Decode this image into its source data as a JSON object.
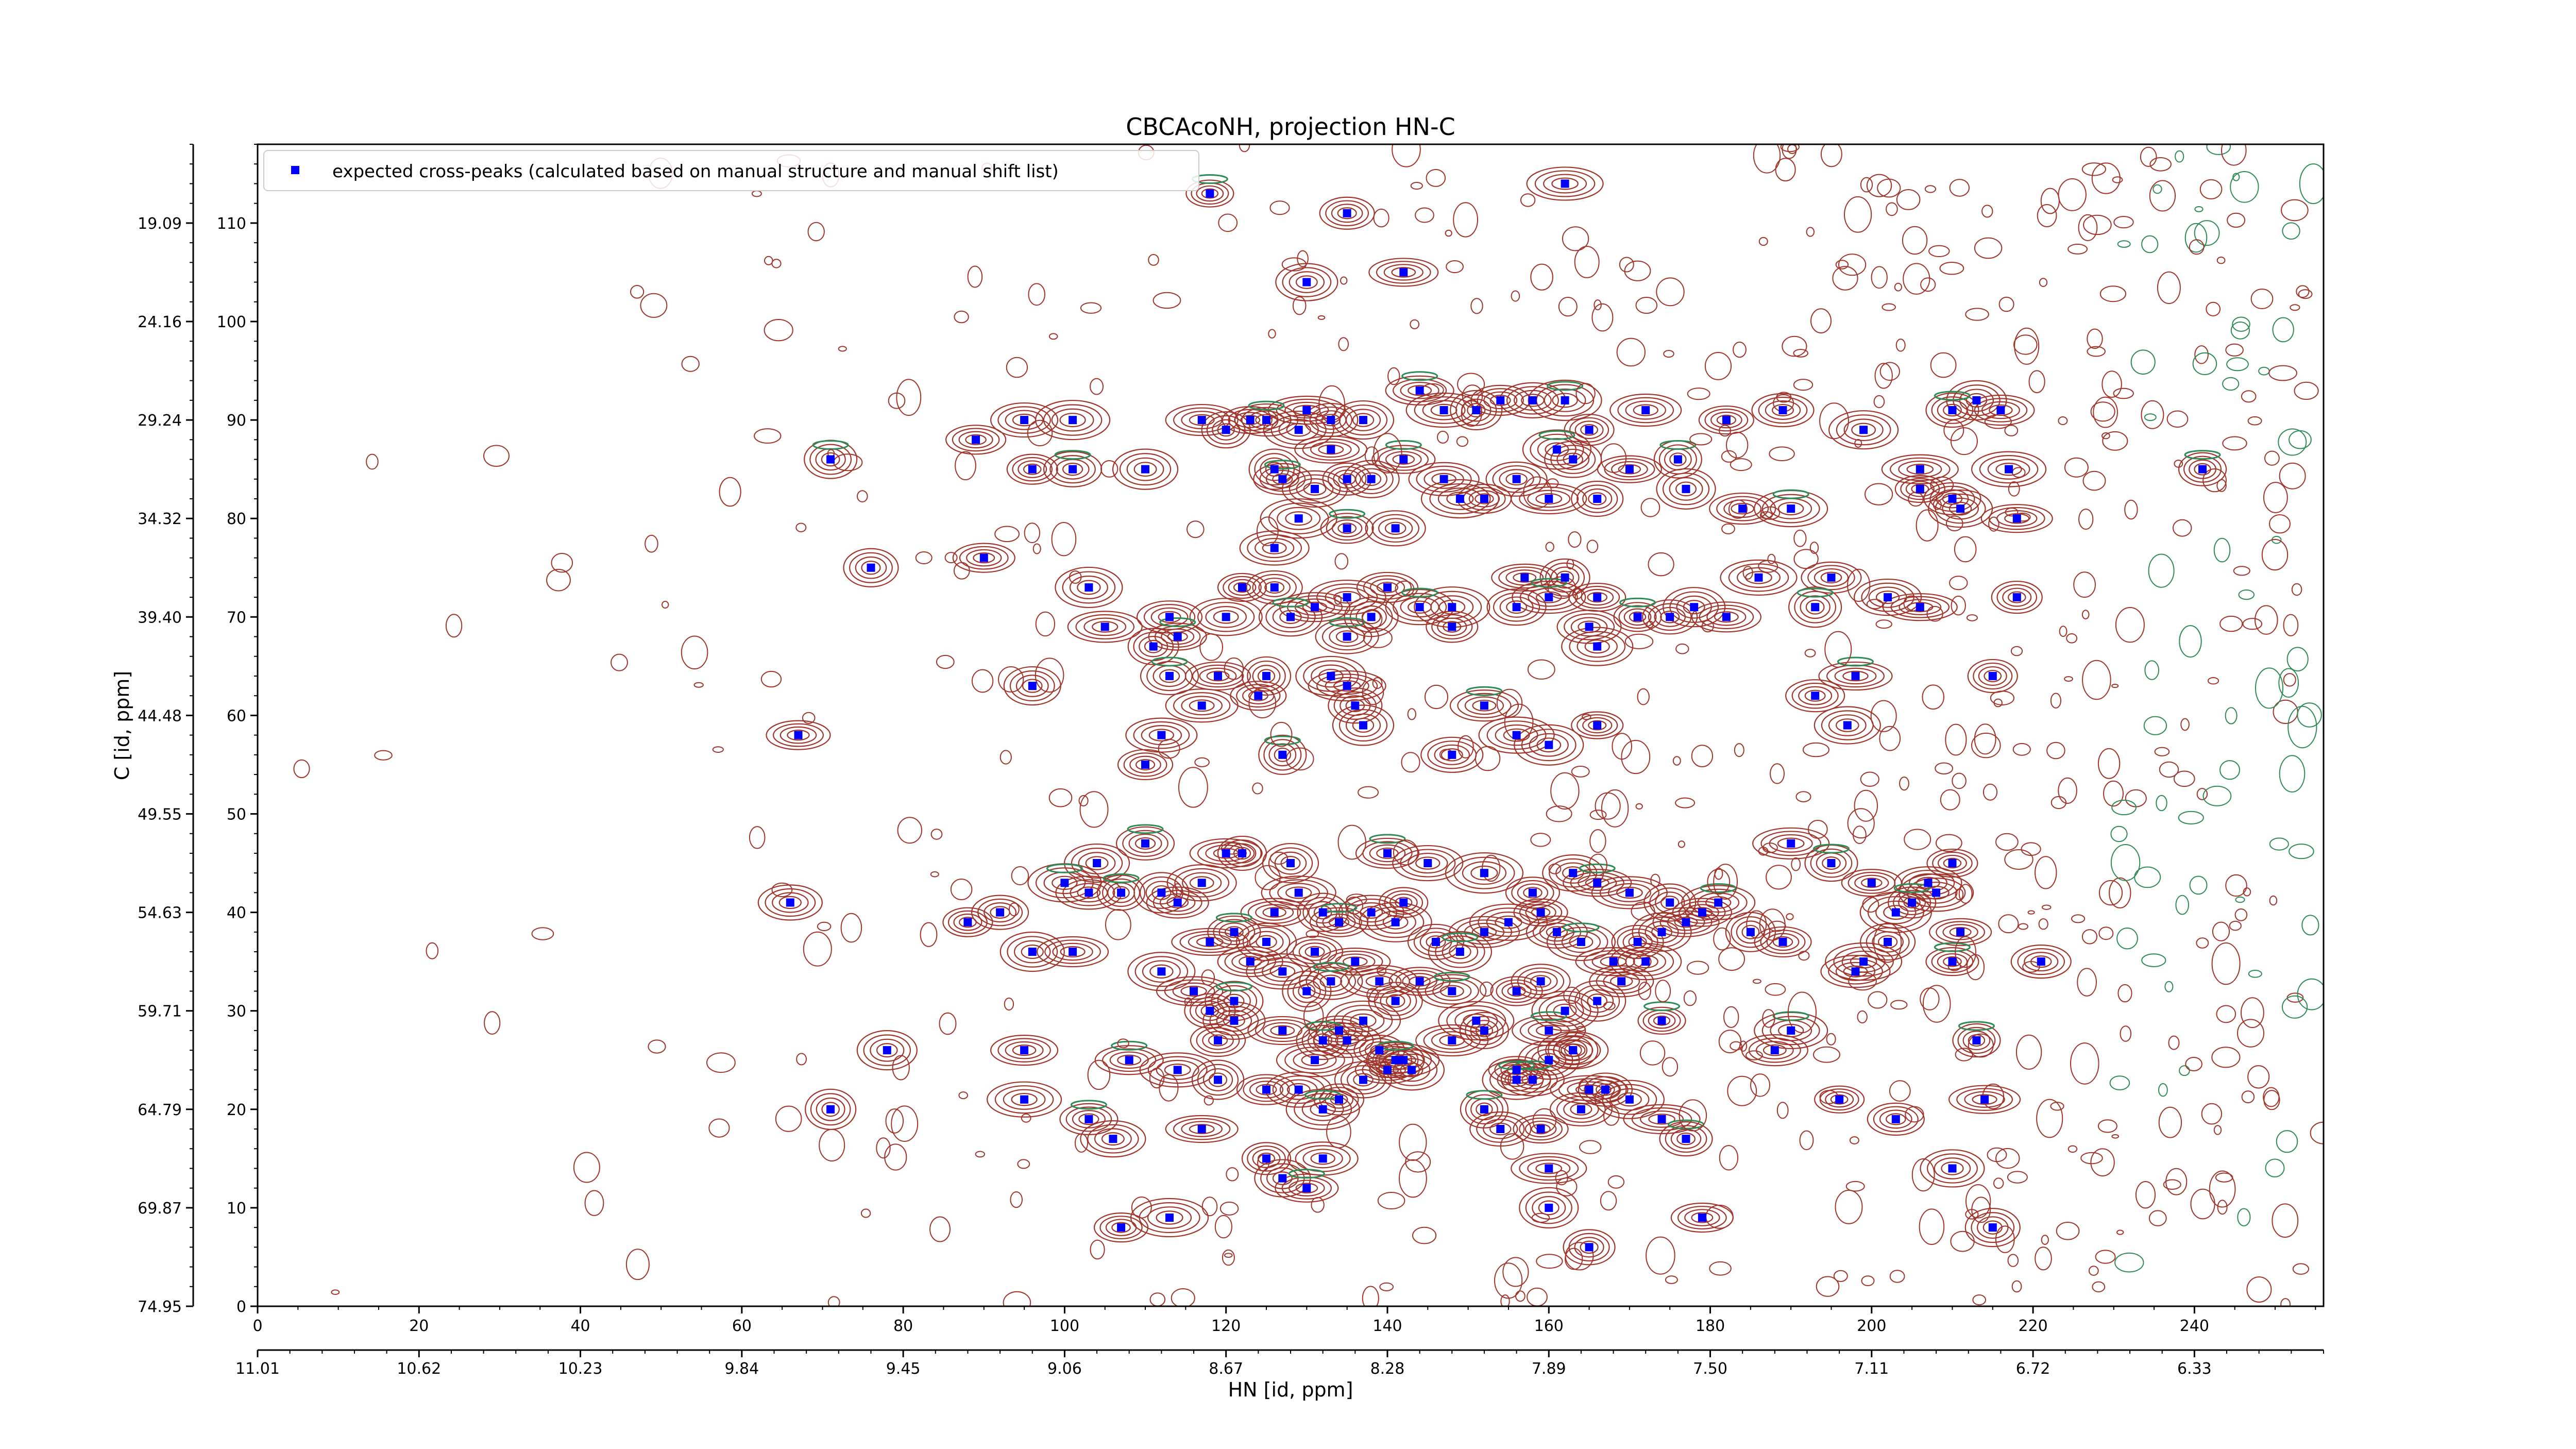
{
  "chart_data": {
    "type": "scatter",
    "title": "CBCAcoNH, projection HN-C",
    "xlabel": "HN [id, ppm]",
    "ylabel": "C [id, ppm]",
    "xlim": [
      0,
      256
    ],
    "ylim": [
      0,
      118
    ],
    "x_index_ticks": [
      "0",
      "20",
      "40",
      "60",
      "80",
      "100",
      "120",
      "140",
      "160",
      "180",
      "200",
      "220",
      "240"
    ],
    "x_ppm_ticks": [
      "11.01",
      "10.62",
      "10.23",
      "9.84",
      "9.45",
      "9.06",
      "8.67",
      "8.28",
      "7.89",
      "7.50",
      "7.11",
      "6.72",
      "6.33"
    ],
    "y_index_ticks": [
      "0",
      "10",
      "20",
      "30",
      "40",
      "50",
      "60",
      "70",
      "80",
      "90",
      "100",
      "110"
    ],
    "y_ppm_ticks": [
      "74.95",
      "69.87",
      "64.79",
      "59.71",
      "54.63",
      "49.55",
      "44.48",
      "39.40",
      "34.32",
      "29.24",
      "24.16",
      "19.09"
    ],
    "legend": {
      "label": "expected cross-peaks (calculated based on manual structure and manual shift list)",
      "placement": "upper-left",
      "marker_color": "#0000ff"
    },
    "colors": {
      "positive_contour": "#a0342a",
      "negative_contour": "#2e8b57",
      "marker": "#0000ff"
    },
    "series": [
      {
        "name": "expected cross-peaks (calculated based on manual structure and manual shift list)",
        "points": [
          [
            118,
            113
          ],
          [
            135,
            111
          ],
          [
            130,
            104
          ],
          [
            142,
            105
          ],
          [
            162,
            114
          ],
          [
            71,
            86
          ],
          [
            89,
            88
          ],
          [
            95,
            90
          ],
          [
            101,
            90
          ],
          [
            96,
            85
          ],
          [
            101,
            85
          ],
          [
            110,
            85
          ],
          [
            117,
            90
          ],
          [
            120,
            89
          ],
          [
            123,
            90
          ],
          [
            125,
            90
          ],
          [
            129,
            89
          ],
          [
            130,
            91
          ],
          [
            133,
            90
          ],
          [
            137,
            90
          ],
          [
            144,
            93
          ],
          [
            147,
            91
          ],
          [
            151,
            91
          ],
          [
            154,
            92
          ],
          [
            158,
            92
          ],
          [
            162,
            92
          ],
          [
            165,
            89
          ],
          [
            163,
            86
          ],
          [
            170,
            85
          ],
          [
            172,
            91
          ],
          [
            176,
            86
          ],
          [
            182,
            90
          ],
          [
            189,
            91
          ],
          [
            199,
            89
          ],
          [
            206,
            85
          ],
          [
            210,
            91
          ],
          [
            213,
            92
          ],
          [
            216,
            91
          ],
          [
            217,
            85
          ],
          [
            126,
            85
          ],
          [
            127,
            84
          ],
          [
            131,
            83
          ],
          [
            133,
            87
          ],
          [
            135,
            84
          ],
          [
            138,
            84
          ],
          [
            142,
            86
          ],
          [
            147,
            84
          ],
          [
            149,
            82
          ],
          [
            152,
            82
          ],
          [
            156,
            84
          ],
          [
            161,
            87
          ],
          [
            160,
            82
          ],
          [
            166,
            82
          ],
          [
            177,
            83
          ],
          [
            184,
            81
          ],
          [
            190,
            81
          ],
          [
            206,
            83
          ],
          [
            210,
            82
          ],
          [
            211,
            81
          ],
          [
            218,
            80
          ],
          [
            241,
            85
          ],
          [
            76,
            75
          ],
          [
            90,
            76
          ],
          [
            126,
            77
          ],
          [
            129,
            80
          ],
          [
            135,
            79
          ],
          [
            141,
            79
          ],
          [
            103,
            73
          ],
          [
            105,
            69
          ],
          [
            111,
            67
          ],
          [
            114,
            68
          ],
          [
            113,
            70
          ],
          [
            120,
            70
          ],
          [
            122,
            73
          ],
          [
            126,
            73
          ],
          [
            128,
            70
          ],
          [
            131,
            71
          ],
          [
            135,
            72
          ],
          [
            138,
            70
          ],
          [
            140,
            73
          ],
          [
            144,
            71
          ],
          [
            148,
            71
          ],
          [
            148,
            69
          ],
          [
            156,
            71
          ],
          [
            157,
            74
          ],
          [
            160,
            72
          ],
          [
            162,
            74
          ],
          [
            166,
            72
          ],
          [
            165,
            69
          ],
          [
            166,
            67
          ],
          [
            171,
            70
          ],
          [
            175,
            70
          ],
          [
            178,
            71
          ],
          [
            182,
            70
          ],
          [
            186,
            74
          ],
          [
            193,
            71
          ],
          [
            195,
            74
          ],
          [
            202,
            72
          ],
          [
            206,
            71
          ],
          [
            218,
            72
          ],
          [
            113,
            64
          ],
          [
            119,
            64
          ],
          [
            117,
            61
          ],
          [
            125,
            64
          ],
          [
            124,
            62
          ],
          [
            135,
            68
          ],
          [
            133,
            64
          ],
          [
            135,
            63
          ],
          [
            136,
            61
          ],
          [
            137,
            59
          ],
          [
            152,
            61
          ],
          [
            156,
            58
          ],
          [
            166,
            59
          ],
          [
            193,
            62
          ],
          [
            197,
            59
          ],
          [
            198,
            64
          ],
          [
            215,
            64
          ],
          [
            96,
            63
          ],
          [
            67,
            58
          ],
          [
            112,
            58
          ],
          [
            127,
            56
          ],
          [
            110,
            55
          ],
          [
            148,
            56
          ],
          [
            160,
            57
          ],
          [
            190,
            47
          ],
          [
            195,
            45
          ],
          [
            200,
            43
          ],
          [
            207,
            43
          ],
          [
            208,
            42
          ],
          [
            210,
            45
          ],
          [
            110,
            47
          ],
          [
            104,
            45
          ],
          [
            120,
            46
          ],
          [
            122,
            46
          ],
          [
            128,
            45
          ],
          [
            140,
            46
          ],
          [
            145,
            45
          ],
          [
            152,
            44
          ],
          [
            158,
            42
          ],
          [
            163,
            44
          ],
          [
            166,
            43
          ],
          [
            170,
            42
          ],
          [
            175,
            41
          ],
          [
            179,
            40
          ],
          [
            103,
            42
          ],
          [
            100,
            43
          ],
          [
            88,
            39
          ],
          [
            92,
            40
          ],
          [
            96,
            36
          ],
          [
            101,
            36
          ],
          [
            107,
            42
          ],
          [
            112,
            42
          ],
          [
            114,
            41
          ],
          [
            117,
            43
          ],
          [
            118,
            37
          ],
          [
            121,
            38
          ],
          [
            125,
            37
          ],
          [
            126,
            40
          ],
          [
            129,
            42
          ],
          [
            132,
            40
          ],
          [
            134,
            39
          ],
          [
            138,
            40
          ],
          [
            141,
            39
          ],
          [
            142,
            41
          ],
          [
            146,
            37
          ],
          [
            149,
            36
          ],
          [
            152,
            38
          ],
          [
            155,
            39
          ],
          [
            159,
            40
          ],
          [
            161,
            38
          ],
          [
            164,
            37
          ],
          [
            168,
            35
          ],
          [
            171,
            37
          ],
          [
            174,
            38
          ],
          [
            177,
            39
          ],
          [
            181,
            41
          ],
          [
            185,
            38
          ],
          [
            189,
            37
          ],
          [
            66,
            41
          ],
          [
            203,
            40
          ],
          [
            205,
            41
          ],
          [
            202,
            37
          ],
          [
            211,
            38
          ],
          [
            198,
            34
          ],
          [
            199,
            35
          ],
          [
            210,
            35
          ],
          [
            221,
            35
          ],
          [
            112,
            34
          ],
          [
            116,
            32
          ],
          [
            118,
            30
          ],
          [
            121,
            31
          ],
          [
            123,
            35
          ],
          [
            127,
            34
          ],
          [
            130,
            32
          ],
          [
            131,
            36
          ],
          [
            133,
            33
          ],
          [
            136,
            35
          ],
          [
            139,
            33
          ],
          [
            141,
            31
          ],
          [
            144,
            33
          ],
          [
            148,
            32
          ],
          [
            151,
            29
          ],
          [
            156,
            32
          ],
          [
            159,
            33
          ],
          [
            162,
            30
          ],
          [
            160,
            28
          ],
          [
            163,
            26
          ],
          [
            166,
            31
          ],
          [
            169,
            33
          ],
          [
            172,
            35
          ],
          [
            174,
            29
          ],
          [
            119,
            27
          ],
          [
            121,
            29
          ],
          [
            127,
            28
          ],
          [
            131,
            25
          ],
          [
            132,
            27
          ],
          [
            134,
            28
          ],
          [
            135,
            27
          ],
          [
            137,
            29
          ],
          [
            139,
            26
          ],
          [
            141,
            25
          ],
          [
            143,
            24
          ],
          [
            148,
            27
          ],
          [
            152,
            28
          ],
          [
            156,
            24
          ],
          [
            158,
            23
          ],
          [
            163,
            26
          ],
          [
            165,
            22
          ],
          [
            167,
            22
          ],
          [
            160,
            25
          ],
          [
            108,
            25
          ],
          [
            114,
            24
          ],
          [
            119,
            23
          ],
          [
            125,
            22
          ],
          [
            129,
            22
          ],
          [
            132,
            20
          ],
          [
            134,
            21
          ],
          [
            137,
            23
          ],
          [
            140,
            24
          ],
          [
            142,
            25
          ],
          [
            152,
            20
          ],
          [
            159,
            18
          ],
          [
            164,
            20
          ],
          [
            170,
            21
          ],
          [
            174,
            19
          ],
          [
            177,
            17
          ],
          [
            78,
            26
          ],
          [
            95,
            26
          ],
          [
            95,
            21
          ],
          [
            71,
            20
          ],
          [
            103,
            19
          ],
          [
            106,
            17
          ],
          [
            117,
            18
          ],
          [
            125,
            15
          ],
          [
            127,
            13
          ],
          [
            130,
            12
          ],
          [
            132,
            15
          ],
          [
            113,
            9
          ],
          [
            107,
            8
          ],
          [
            154,
            18
          ],
          [
            156,
            23
          ],
          [
            160,
            14
          ],
          [
            165,
            6
          ],
          [
            160,
            10
          ],
          [
            188,
            26
          ],
          [
            190,
            28
          ],
          [
            196,
            21
          ],
          [
            203,
            19
          ],
          [
            210,
            14
          ],
          [
            214,
            21
          ],
          [
            213,
            27
          ],
          [
            215,
            8
          ],
          [
            179,
            9
          ]
        ]
      }
    ]
  }
}
